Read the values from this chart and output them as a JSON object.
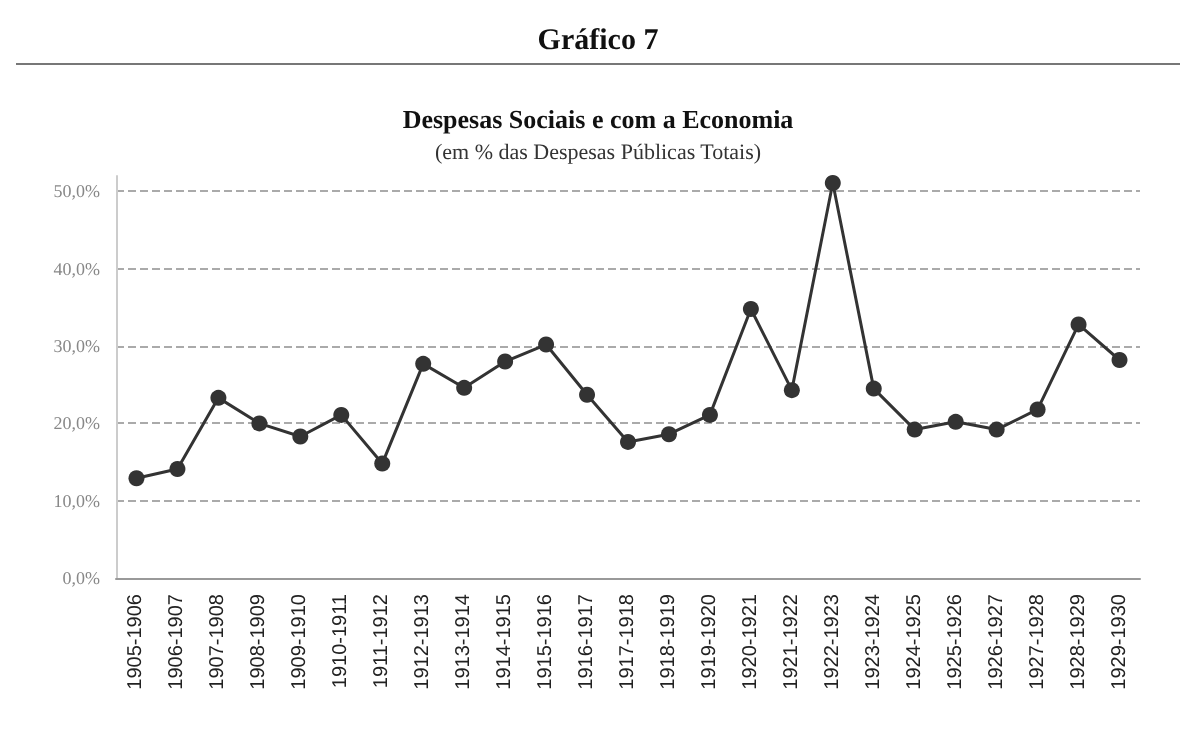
{
  "chart_data": {
    "type": "line",
    "title": "Gráfico 7",
    "subtitle": "Despesas Sociais e com a Economia",
    "annotations": [
      "(em % das Despesas Públicas Totais)"
    ],
    "categories": [
      "1905-1906",
      "1906-1907",
      "1907-1908",
      "1908-1909",
      "1909-1910",
      "1910-1911",
      "1911-1912",
      "1912-1913",
      "1913-1914",
      "1914-1915",
      "1915-1916",
      "1916-1917",
      "1917-1918",
      "1918-1919",
      "1919-1920",
      "1920-1921",
      "1921-1922",
      "1922-1923",
      "1923-1924",
      "1924-1925",
      "1925-1926",
      "1926-1927",
      "1927-1928",
      "1928-1929",
      "1929-1930"
    ],
    "series": [
      {
        "color": "#333333",
        "values": [
          12.9,
          14.1,
          23.3,
          20.0,
          18.3,
          21.1,
          14.8,
          27.7,
          24.6,
          28.0,
          30.2,
          23.7,
          17.6,
          18.6,
          21.1,
          34.8,
          24.3,
          51.1,
          24.5,
          19.2,
          20.2,
          19.2,
          21.8,
          32.8,
          28.2
        ]
      }
    ],
    "ylim": [
      0,
      52
    ],
    "yticks": [
      {
        "value": 0,
        "label": "0,0%"
      },
      {
        "value": 10,
        "label": "10,0%"
      },
      {
        "value": 20,
        "label": "20,0%"
      },
      {
        "value": 30,
        "label": "30,0%"
      },
      {
        "value": 40,
        "label": "40,0%"
      },
      {
        "value": 50,
        "label": "50,0%"
      }
    ],
    "grid": "y",
    "marker": "circle",
    "line_style": "solid"
  }
}
